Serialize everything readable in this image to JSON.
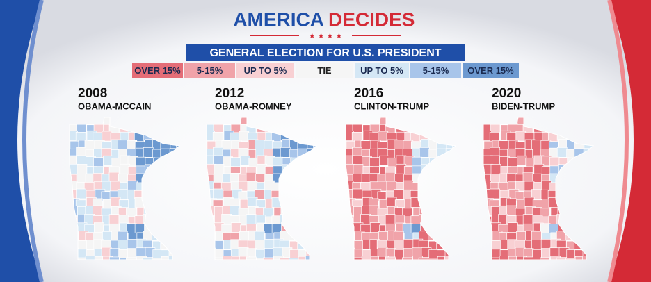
{
  "header": {
    "title": [
      "AMERICA",
      "DECIDES"
    ],
    "subtitle": "GENERAL ELECTION FOR U.S. PRESIDENT"
  },
  "legend": [
    {
      "label": "OVER 15%",
      "color": "#e46d77"
    },
    {
      "label": "5-15%",
      "color": "#f0a3a9"
    },
    {
      "label": "UP TO 5%",
      "color": "#f8d0d3"
    },
    {
      "label": "TIE",
      "color": "#f5f5f5"
    },
    {
      "label": "UP TO 5%",
      "color": "#d4e7f5"
    },
    {
      "label": "5-15%",
      "color": "#a8c5ea"
    },
    {
      "label": "OVER 15%",
      "color": "#6c99d0"
    }
  ],
  "maps": [
    {
      "year": "2008",
      "matchup": "OBAMA-MCCAIN"
    },
    {
      "year": "2012",
      "matchup": "OBAMA-ROMNEY"
    },
    {
      "year": "2016",
      "matchup": "CLINTON-TRUMP"
    },
    {
      "year": "2020",
      "matchup": "BIDEN-TRUMP"
    }
  ]
}
